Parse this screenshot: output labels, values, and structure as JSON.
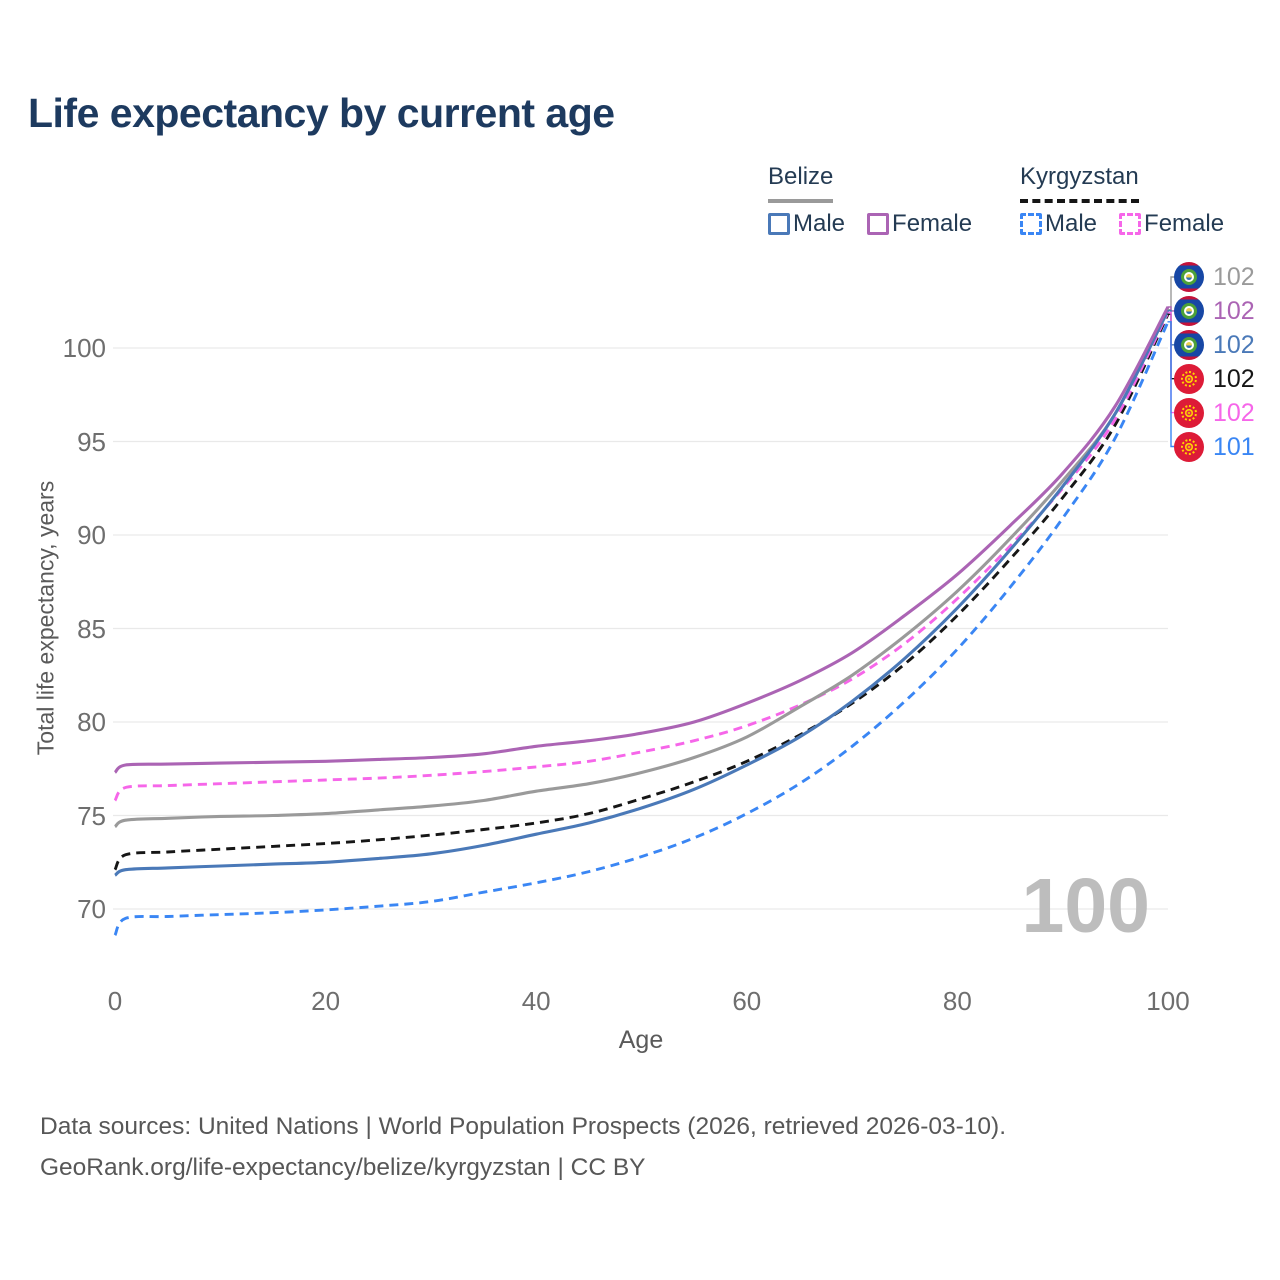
{
  "title": "Life expectancy by current age",
  "watermark": "100",
  "legend": {
    "groups": [
      {
        "country": "Belize",
        "line_style": "solid",
        "line_color": "#9a9a9a",
        "items": [
          {
            "label": "Male",
            "color": "#4a79b8",
            "style": "solid"
          },
          {
            "label": "Female",
            "color": "#ab64b4",
            "style": "solid"
          }
        ]
      },
      {
        "country": "Kyrgyzstan",
        "line_style": "dashed",
        "line_color": "#161616",
        "items": [
          {
            "label": "Male",
            "color": "#3a86f4",
            "style": "dashed"
          },
          {
            "label": "Female",
            "color": "#f666e9",
            "style": "dashed"
          }
        ]
      }
    ]
  },
  "footer": {
    "line1": "Data sources: United Nations | World Population Prospects (2026, retrieved 2026-03-10).",
    "line2": "GeoRank.org/life-expectancy/belize/kyrgyzstan | CC BY"
  },
  "chart_data": {
    "type": "line",
    "title": "Life expectancy by current age",
    "xlabel": "Age",
    "ylabel": "Total life expectancy, years",
    "xlim": [
      0,
      100
    ],
    "ylim": [
      67,
      103
    ],
    "xticks": [
      0,
      20,
      40,
      60,
      80,
      100
    ],
    "yticks": [
      70,
      75,
      80,
      85,
      90,
      95,
      100
    ],
    "grid": "horizontal",
    "legend_position": "top-right",
    "x": [
      0,
      1,
      5,
      10,
      15,
      20,
      25,
      30,
      35,
      40,
      45,
      50,
      55,
      60,
      65,
      70,
      75,
      80,
      85,
      90,
      95,
      100
    ],
    "series": [
      {
        "name": "Belize — All",
        "country": "Belize",
        "flag": "bz",
        "color": "#9a9a9a",
        "dash": "solid",
        "end_label": "102",
        "values": [
          74.4,
          74.75,
          74.85,
          74.95,
          75.0,
          75.1,
          75.3,
          75.5,
          75.8,
          76.3,
          76.7,
          77.3,
          78.1,
          79.2,
          80.8,
          82.5,
          84.6,
          87.0,
          89.8,
          92.9,
          96.5,
          102.05
        ]
      },
      {
        "name": "Belize — Female",
        "country": "Belize",
        "flag": "bz",
        "color": "#ab64b4",
        "dash": "solid",
        "end_label": "102",
        "values": [
          77.3,
          77.7,
          77.75,
          77.8,
          77.85,
          77.9,
          78.0,
          78.1,
          78.3,
          78.7,
          79.0,
          79.4,
          80.0,
          81.0,
          82.2,
          83.7,
          85.7,
          87.9,
          90.5,
          93.3,
          96.9,
          102.2
        ]
      },
      {
        "name": "Belize — Male",
        "country": "Belize",
        "flag": "bz",
        "color": "#4a79b8",
        "dash": "solid",
        "end_label": "102",
        "values": [
          71.8,
          72.1,
          72.2,
          72.3,
          72.4,
          72.5,
          72.7,
          72.95,
          73.4,
          74.0,
          74.6,
          75.4,
          76.4,
          77.7,
          79.2,
          81.1,
          83.4,
          86.1,
          89.2,
          92.6,
          96.5,
          102.0
        ]
      },
      {
        "name": "Kyrgyzstan — All",
        "country": "Kyrgyzstan",
        "flag": "kg",
        "color": "#161616",
        "dash": "dashed",
        "end_label": "102",
        "values": [
          72.1,
          72.9,
          73.05,
          73.2,
          73.35,
          73.5,
          73.7,
          73.95,
          74.25,
          74.6,
          75.1,
          75.9,
          76.8,
          77.9,
          79.3,
          81.0,
          83.1,
          85.7,
          88.7,
          92.0,
          95.9,
          101.8
        ]
      },
      {
        "name": "Kyrgyzstan — Female",
        "country": "Kyrgyzstan",
        "flag": "kg",
        "color": "#f666e9",
        "dash": "dashed",
        "end_label": "102",
        "values": [
          75.8,
          76.5,
          76.6,
          76.7,
          76.8,
          76.9,
          77.0,
          77.15,
          77.35,
          77.6,
          77.9,
          78.4,
          79.0,
          79.8,
          80.9,
          82.3,
          84.2,
          86.6,
          89.4,
          92.5,
          96.2,
          101.9
        ]
      },
      {
        "name": "Kyrgyzstan — Male",
        "country": "Kyrgyzstan",
        "flag": "kg",
        "color": "#3a86f4",
        "dash": "dashed",
        "end_label": "101",
        "values": [
          68.6,
          69.5,
          69.6,
          69.7,
          69.8,
          69.95,
          70.15,
          70.4,
          70.9,
          71.4,
          72.0,
          72.8,
          73.8,
          75.1,
          76.7,
          78.7,
          81.1,
          83.9,
          87.2,
          90.9,
          95.2,
          101.4
        ]
      }
    ]
  }
}
